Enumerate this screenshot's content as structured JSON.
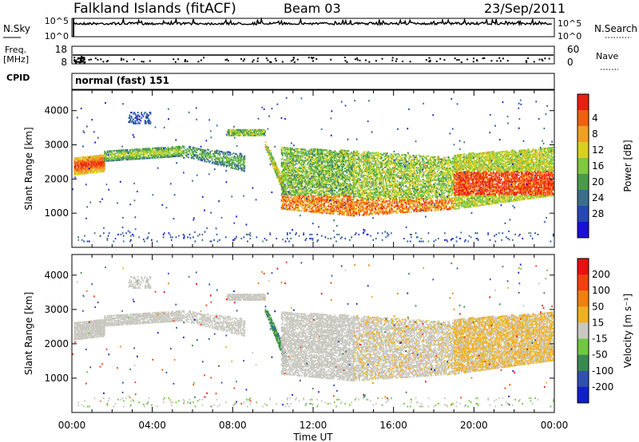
{
  "header": {
    "station": "Falkland Islands (fitACF)",
    "beam": "Beam 03",
    "date": "23/Sep/2011"
  },
  "sky_panel": {
    "label": "N.Sky",
    "left_ticks": [
      "10^5",
      "10^0"
    ],
    "right_ticks": [
      "10^5",
      "10^0"
    ],
    "right_label": "N.Search"
  },
  "freq_panel": {
    "label": "Freq.",
    "unit": "[MHz]",
    "left_ticks": [
      "18",
      "8"
    ],
    "right_ticks": [
      "60",
      "0"
    ],
    "right_label": "Nave"
  },
  "cpid": {
    "label": "CPID",
    "value": "normal (fast) 151"
  },
  "colors": {
    "power": [
      "#1a10d8",
      "#2548b4",
      "#3a6e8c",
      "#4a9a4a",
      "#7fc840",
      "#d8d020",
      "#f0a020",
      "#f06010",
      "#e82010"
    ],
    "velocity": [
      "#1020c8",
      "#3050b0",
      "#3a8a50",
      "#70c840",
      "#c8c8c0",
      "#f0b020",
      "#f08010",
      "#f04010",
      "#e81010"
    ]
  },
  "chart_data": [
    {
      "type": "heatmap",
      "name": "power",
      "ylabel": "Slant Range [km]",
      "xlabel": "",
      "x_ticks": [
        "00:00",
        "04:00",
        "08:00",
        "12:00",
        "16:00",
        "20:00",
        "00:00"
      ],
      "y_ticks": [
        "1000",
        "2000",
        "3000",
        "4000"
      ],
      "ylim": [
        0,
        4600
      ],
      "colorbar": {
        "label": "Power [dB]",
        "ticks": [
          "4",
          "8",
          "12",
          "16",
          "20",
          "24",
          "28"
        ]
      }
    },
    {
      "type": "heatmap",
      "name": "velocity",
      "ylabel": "Slant Range [km]",
      "xlabel": "Time UT",
      "x_ticks": [
        "00:00",
        "04:00",
        "08:00",
        "12:00",
        "16:00",
        "20:00",
        "00:00"
      ],
      "y_ticks": [
        "1000",
        "2000",
        "3000",
        "4000"
      ],
      "ylim": [
        0,
        4600
      ],
      "colorbar": {
        "label": "Velocity [m s⁻¹]",
        "ticks": [
          "200",
          "100",
          "50",
          "15",
          "-15",
          "-50",
          "-100",
          "-200"
        ]
      }
    }
  ]
}
